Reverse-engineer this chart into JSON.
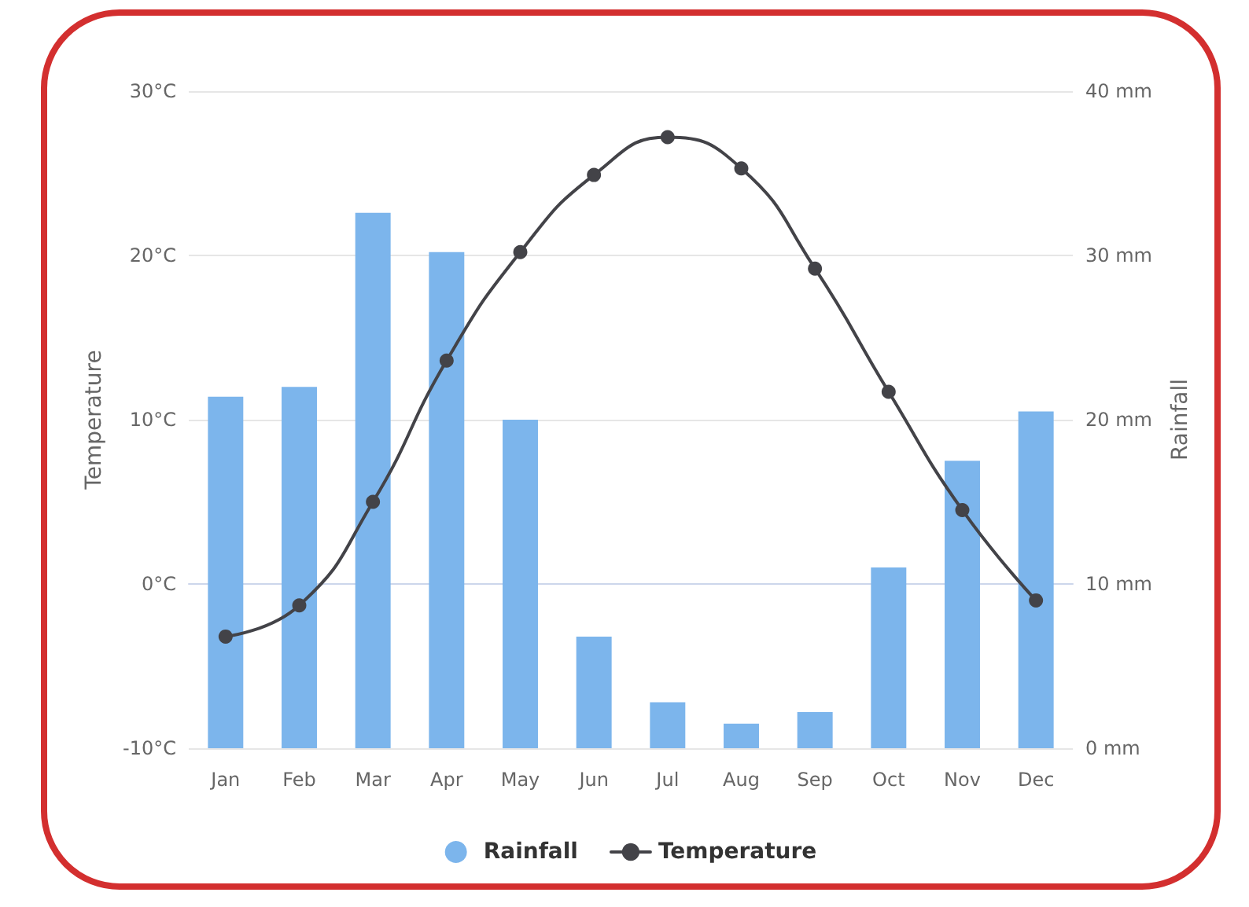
{
  "chart_data": {
    "type": "bar",
    "categories": [
      "Jan",
      "Feb",
      "Mar",
      "Apr",
      "May",
      "Jun",
      "Jul",
      "Aug",
      "Sep",
      "Oct",
      "Nov",
      "Dec"
    ],
    "series": [
      {
        "name": "Rainfall",
        "axis": "y2",
        "color": "#7cb5ec",
        "values": [
          21.4,
          22.0,
          32.6,
          30.2,
          20.0,
          6.8,
          2.8,
          1.5,
          2.2,
          11.0,
          17.5,
          20.5
        ]
      },
      {
        "name": "Temperature",
        "type": "line",
        "axis": "y",
        "color": "#434348",
        "marker": "circle",
        "values": [
          -3.2,
          -1.3,
          5.0,
          13.6,
          20.2,
          24.9,
          27.2,
          25.3,
          19.2,
          11.7,
          4.5,
          -1.0
        ]
      }
    ],
    "ylabel": "Temperature",
    "y2label": "Rainfall",
    "ylim": [
      -10,
      30
    ],
    "yticks": [
      {
        "value": -10,
        "label": "-10°C"
      },
      {
        "value": 0,
        "label": "0°C"
      },
      {
        "value": 10,
        "label": "10°C"
      },
      {
        "value": 20,
        "label": "20°C"
      },
      {
        "value": 30,
        "label": "30°C"
      }
    ],
    "y2lim": [
      0,
      40
    ],
    "y2ticks": [
      {
        "value": 0,
        "label": "0 mm"
      },
      {
        "value": 10,
        "label": "10 mm"
      },
      {
        "value": 20,
        "label": "20 mm"
      },
      {
        "value": 30,
        "label": "30 mm"
      },
      {
        "value": 40,
        "label": "40 mm"
      }
    ],
    "grid": "y",
    "legend": "bottom"
  }
}
